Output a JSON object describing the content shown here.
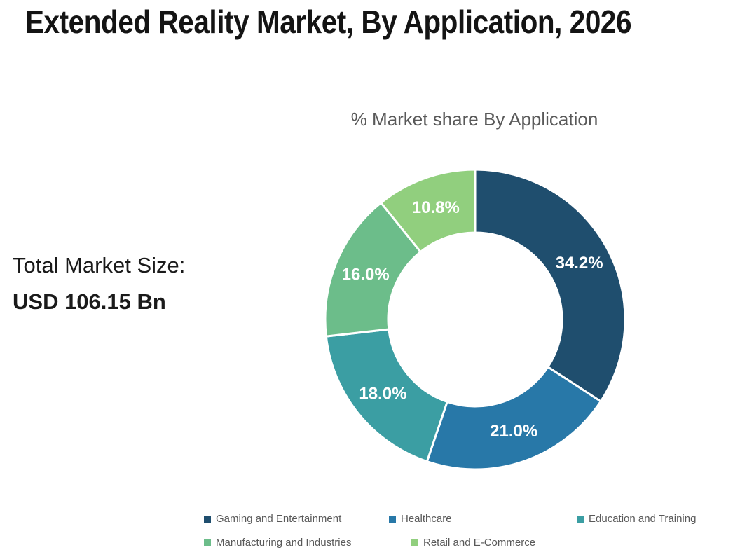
{
  "page": {
    "title": "Extended Reality Market, By Application, 2026"
  },
  "summary": {
    "label": "Total Market Size:",
    "value": "USD 106.15 Bn"
  },
  "chart_data": {
    "type": "pie",
    "subtype": "donut",
    "title": "% Market share By Application",
    "units": "%",
    "categories": [
      "Gaming and Entertainment",
      "Healthcare",
      "Education and Training",
      "Manufacturing and Industries",
      "Retail and E-Commerce"
    ],
    "values": [
      34.2,
      21.0,
      18.0,
      16.0,
      10.8
    ],
    "value_labels": [
      "34.2%",
      "21.0%",
      "18.0%",
      "16.0%",
      "10.8%"
    ],
    "colors": [
      "#1f4e6e",
      "#2878a8",
      "#3b9ea3",
      "#6cbd8a",
      "#91cf7e"
    ],
    "start_angle_deg": 0,
    "direction": "clockwise",
    "inner_radius_ratio": 0.58,
    "grid": false,
    "legend_position": "bottom"
  }
}
